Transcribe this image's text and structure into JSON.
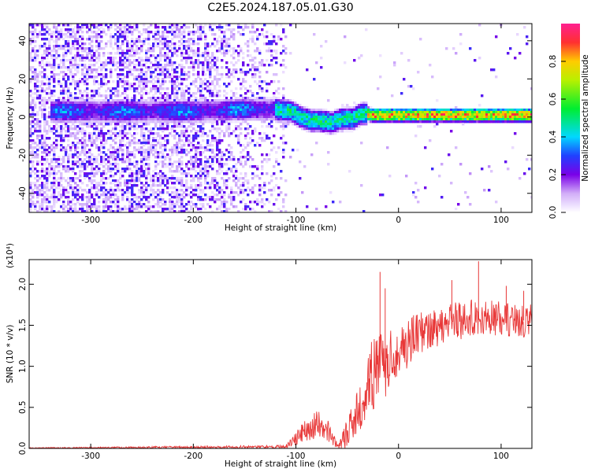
{
  "title": "C2E5.2024.187.05.01.G30",
  "chart_data": [
    {
      "type": "heatmap",
      "xlabel": "Height of straight line (km)",
      "ylabel": "Frequency (Hz)",
      "xlim": [
        -360,
        130
      ],
      "ylim": [
        -50,
        49
      ],
      "x_ticks": [
        -300,
        -200,
        -100,
        0,
        100
      ],
      "y_ticks": [
        -40,
        -20,
        0,
        20,
        40
      ],
      "ridge": {
        "x": [
          -340,
          -300,
          -250,
          -200,
          -150,
          -120,
          -105,
          -95,
          -85,
          -75,
          -65,
          -55,
          -45,
          -35,
          -25,
          0,
          50,
          100,
          130
        ],
        "freq": [
          3,
          3,
          3,
          3,
          4,
          4,
          3,
          0,
          -2,
          -2,
          -3,
          -1,
          -1,
          2,
          1,
          1,
          1,
          1,
          1
        ]
      },
      "colorbar": {
        "label": "Normalized spectral amplitude",
        "range": [
          0.0,
          1.0
        ],
        "ticks": [
          0.0,
          0.2,
          0.4,
          0.6,
          0.8
        ]
      }
    },
    {
      "type": "line",
      "xlabel": "Height of straight line (km)",
      "ylabel": "SNR (10 * v/v)",
      "scale_label": "(x10⁴)",
      "xlim": [
        -360,
        130
      ],
      "ylim": [
        0,
        2.3
      ],
      "x_ticks": [
        -300,
        -200,
        -100,
        0,
        100
      ],
      "y_ticks": [
        0.0,
        0.5,
        1.0,
        1.5,
        2.0
      ],
      "color": "#e83838",
      "envelope": {
        "x": [
          -360,
          -110,
          -100,
          -90,
          -80,
          -70,
          -60,
          -55,
          -45,
          -35,
          -25,
          -15,
          -5,
          10,
          30,
          50,
          80,
          130
        ],
        "mid": [
          0.005,
          0.02,
          0.12,
          0.22,
          0.3,
          0.24,
          0.04,
          0.08,
          0.3,
          0.6,
          0.9,
          1.0,
          1.15,
          1.3,
          1.45,
          1.55,
          1.6,
          1.55
        ],
        "amp": [
          0.006,
          0.02,
          0.08,
          0.15,
          0.18,
          0.15,
          0.04,
          0.1,
          0.25,
          0.35,
          0.45,
          0.45,
          0.35,
          0.3,
          0.25,
          0.25,
          0.22,
          0.2
        ]
      },
      "spikes": [
        {
          "x": -18,
          "y": 2.15
        },
        {
          "x": -13,
          "y": 1.95
        },
        {
          "x": -28,
          "y": 1.15
        },
        {
          "x": 78,
          "y": 2.28
        },
        {
          "x": 52,
          "y": 2.05
        },
        {
          "x": 105,
          "y": 1.98
        },
        {
          "x": 122,
          "y": 1.92
        }
      ]
    }
  ]
}
